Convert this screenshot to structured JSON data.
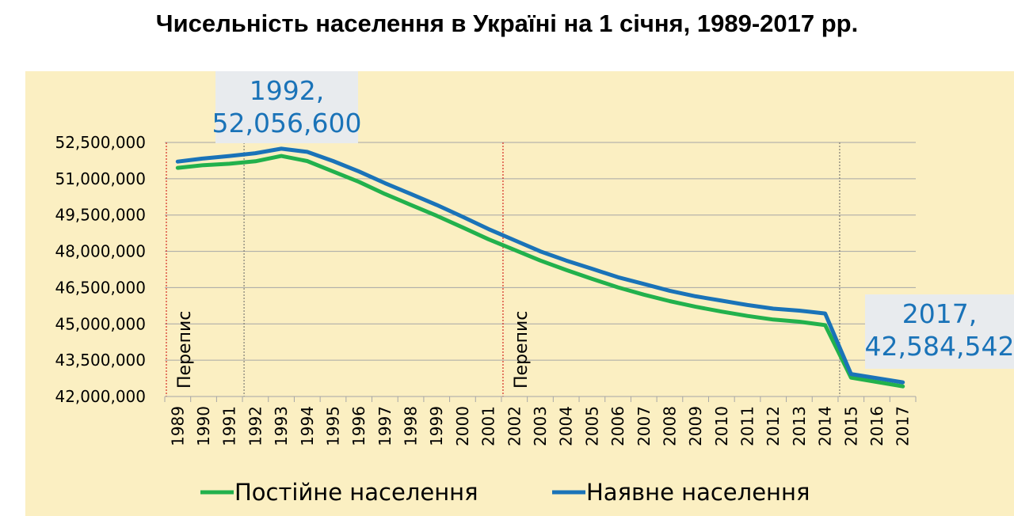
{
  "title": "Чисельність населення в Україні на 1 січня, 1989-2017 рр.",
  "chart_data": {
    "type": "line",
    "x": [
      1989,
      1990,
      1991,
      1992,
      1993,
      1994,
      1995,
      1996,
      1997,
      1998,
      1999,
      2000,
      2001,
      2002,
      2003,
      2004,
      2005,
      2006,
      2007,
      2008,
      2009,
      2010,
      2011,
      2012,
      2013,
      2014,
      2015,
      2016,
      2017
    ],
    "x_labels": [
      "1989",
      "1990",
      "1991",
      "1992",
      "1993",
      "1994",
      "1995",
      "1996",
      "1997",
      "1998",
      "1999",
      "2000",
      "2001",
      "2002",
      "2003",
      "2004",
      "2005",
      "2006",
      "2007",
      "2008",
      "2009",
      "2010",
      "2011",
      "2012",
      "2013",
      "2014",
      "2015",
      "2016",
      "2017"
    ],
    "ylim": [
      42000000,
      52500000
    ],
    "y_ticks": [
      42000000,
      43500000,
      45000000,
      46500000,
      48000000,
      49500000,
      51000000,
      52500000
    ],
    "y_tick_labels": [
      "42,000,000",
      "43,500,000",
      "45,000,000",
      "46,500,000",
      "48,000,000",
      "49,500,000",
      "51,000,000",
      "52,500,000"
    ],
    "grid": true,
    "legend_position": "bottom",
    "series": [
      {
        "name": "Постійне населення",
        "color": "#22b14c",
        "values": [
          51450000,
          51560000,
          51620000,
          51720000,
          51940000,
          51730000,
          51300000,
          50870000,
          50370000,
          49920000,
          49470000,
          48990000,
          48500000,
          48060000,
          47620000,
          47230000,
          46860000,
          46510000,
          46210000,
          45940000,
          45710000,
          45510000,
          45330000,
          45180000,
          45090000,
          44950000,
          42780000,
          42600000,
          42420000
        ]
      },
      {
        "name": "Наявне населення",
        "color": "#1a73b8",
        "values": [
          51710000,
          51840000,
          51940000,
          52056600,
          52240000,
          52110000,
          51730000,
          51300000,
          50820000,
          50370000,
          49920000,
          49430000,
          48920000,
          48460000,
          48000000,
          47620000,
          47280000,
          46930000,
          46650000,
          46370000,
          46140000,
          45960000,
          45780000,
          45630000,
          45550000,
          45430000,
          42930000,
          42760000,
          42584542
        ]
      }
    ],
    "census_markers": [
      {
        "year": 1989,
        "label": "Перепис",
        "color": "#cc0000"
      },
      {
        "year": 2002,
        "label": "Перепис",
        "color": "#cc0000"
      }
    ],
    "reference_lines": [
      {
        "year": 1992,
        "color": "#666666"
      },
      {
        "year": 2015,
        "color": "#666666"
      }
    ],
    "annotations": [
      {
        "year": 1992,
        "lines": [
          "1992,",
          "52,056,600"
        ]
      },
      {
        "year": 2017,
        "lines": [
          "2017,",
          "42,584,542"
        ]
      }
    ]
  }
}
